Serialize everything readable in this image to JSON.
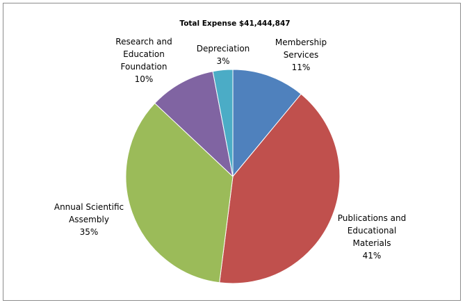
{
  "chart_data": {
    "type": "pie",
    "title": "Total Expense $41,444,847",
    "slices": [
      {
        "label": [
          "Membership",
          "Services"
        ],
        "percent_label": "11%",
        "value": 11,
        "color": "#4f81bd"
      },
      {
        "label": [
          "Publications and",
          "Educational",
          "Materials"
        ],
        "percent_label": "41%",
        "value": 41,
        "color": "#c0504d"
      },
      {
        "label": [
          "Annual Scientific",
          "Assembly"
        ],
        "percent_label": "35%",
        "value": 35,
        "color": "#9bbb59"
      },
      {
        "label": [
          "Research and",
          "Education",
          "Foundation"
        ],
        "percent_label": "10%",
        "value": 10,
        "color": "#8064a2"
      },
      {
        "label": [
          "Depreciation"
        ],
        "percent_label": "3%",
        "value": 3,
        "color": "#4bacc6"
      }
    ]
  }
}
